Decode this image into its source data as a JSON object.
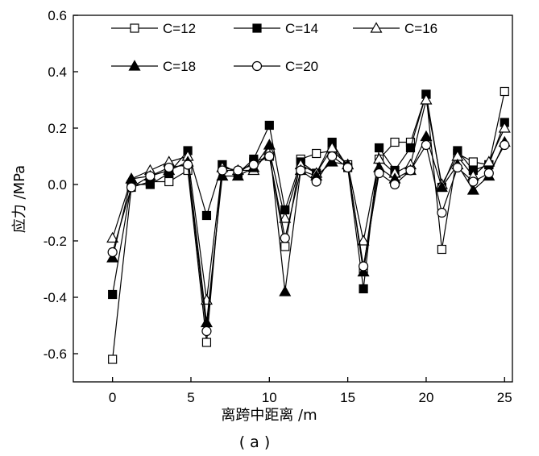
{
  "chart_data": {
    "type": "line",
    "title": "",
    "caption": "( a )",
    "xlabel": "离跨中距离 /m",
    "ylabel": "应力 /MPa",
    "xlim": [
      -2.5,
      25.5
    ],
    "ylim": [
      -0.7,
      0.6
    ],
    "xticks": [
      0,
      5,
      10,
      15,
      20,
      25
    ],
    "xtick_labels": [
      "0",
      "5",
      "10",
      "15",
      "20",
      "25"
    ],
    "yticks": [
      -0.6,
      -0.4,
      -0.2,
      0.0,
      0.2,
      0.4,
      0.6
    ],
    "ytick_labels": [
      "-0.6",
      "-0.4",
      "-0.2",
      "0.0",
      "0.2",
      "0.4",
      "0.6"
    ],
    "x": [
      0,
      1.2,
      2.4,
      3.6,
      4.8,
      6,
      7,
      8,
      9,
      10,
      11,
      12,
      13,
      14,
      15,
      16,
      17,
      18,
      19,
      20,
      21,
      22,
      23,
      24,
      25
    ],
    "series": [
      {
        "name": "C=12",
        "marker": "square-open",
        "values": [
          -0.62,
          -0.01,
          0.01,
          0.01,
          0.05,
          -0.56,
          0.07,
          0.04,
          0.08,
          0.1,
          -0.22,
          0.09,
          0.11,
          0.12,
          0.07,
          -0.3,
          0.09,
          0.15,
          0.15,
          0.32,
          -0.23,
          0.11,
          0.08,
          0.07,
          0.33
        ]
      },
      {
        "name": "C=14",
        "marker": "square-filled",
        "values": [
          -0.39,
          0.0,
          0.0,
          0.04,
          0.12,
          -0.11,
          0.07,
          0.04,
          0.09,
          0.21,
          -0.09,
          0.08,
          0.04,
          0.15,
          0.06,
          -0.37,
          0.13,
          0.05,
          0.13,
          0.32,
          -0.01,
          0.12,
          0.05,
          0.07,
          0.22
        ]
      },
      {
        "name": "C=16",
        "marker": "triangle-open",
        "values": [
          -0.19,
          0.02,
          0.05,
          0.08,
          0.1,
          -0.41,
          0.06,
          0.05,
          0.05,
          0.12,
          -0.12,
          0.07,
          0.04,
          0.13,
          0.07,
          -0.2,
          0.09,
          0.04,
          0.07,
          0.3,
          0.0,
          0.1,
          0.03,
          0.08,
          0.2
        ]
      },
      {
        "name": "C=18",
        "marker": "triangle-filled",
        "values": [
          -0.26,
          0.02,
          0.03,
          0.05,
          0.08,
          -0.49,
          0.03,
          0.03,
          0.06,
          0.14,
          -0.38,
          0.05,
          0.03,
          0.08,
          0.07,
          -0.31,
          0.06,
          0.02,
          0.05,
          0.17,
          -0.01,
          0.07,
          -0.02,
          0.03,
          0.15
        ]
      },
      {
        "name": "C=20",
        "marker": "circle-open",
        "values": [
          -0.24,
          -0.01,
          0.03,
          0.06,
          0.07,
          -0.52,
          0.05,
          0.05,
          0.07,
          0.1,
          -0.19,
          0.05,
          0.01,
          0.1,
          0.06,
          -0.29,
          0.04,
          0.0,
          0.05,
          0.14,
          -0.1,
          0.06,
          0.01,
          0.04,
          0.14
        ]
      }
    ],
    "legend": {
      "placement": "top",
      "columns": 3
    },
    "grid": false
  }
}
